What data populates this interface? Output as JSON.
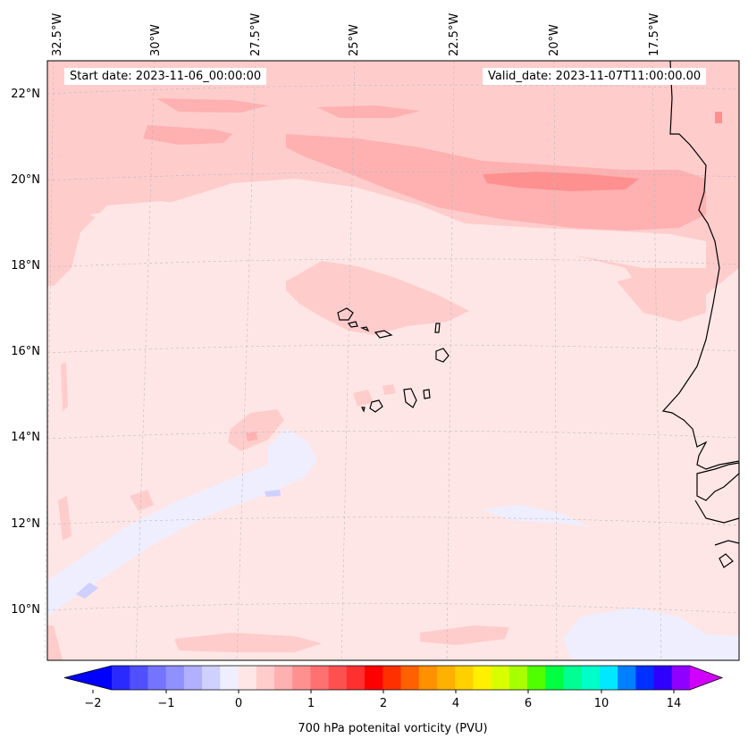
{
  "map": {
    "start_label": "Start date: 2023-11-06_00:00:00",
    "valid_label": "Valid_date: 2023-11-07T11:00:00.00",
    "lon_labels": [
      "32.5°W",
      "30°W",
      "27.5°W",
      "25°W",
      "22.5°W",
      "20°W",
      "17.5°W"
    ],
    "lat_labels": [
      "22°N",
      "20°N",
      "18°N",
      "16°N",
      "14°N",
      "12°N",
      "10°N"
    ],
    "background_color": "#ffe6e6",
    "coastline_color": "#000000"
  },
  "colorbar": {
    "label": "700 hPa potenital vorticity (PVU)",
    "ticks": [
      "−2",
      "−1",
      "0",
      "1",
      "2",
      "4",
      "6",
      "10",
      "14"
    ],
    "colors": [
      "#0000ff",
      "#2a2aff",
      "#5050ff",
      "#7474ff",
      "#9090ff",
      "#b0b0ff",
      "#d0d0ff",
      "#eeeeff",
      "#ffe6e6",
      "#ffcccc",
      "#ffb0b0",
      "#ff9090",
      "#ff7070",
      "#ff5050",
      "#ff3030",
      "#ff0000",
      "#ff3000",
      "#ff6000",
      "#ff9000",
      "#ffb000",
      "#ffd000",
      "#fff000",
      "#d8ff00",
      "#a8ff00",
      "#50ff00",
      "#00ff40",
      "#00ff90",
      "#00ffc8",
      "#00e8ff",
      "#0080ff",
      "#0030ff",
      "#3000ff",
      "#9000ff",
      "#d000ff"
    ]
  }
}
